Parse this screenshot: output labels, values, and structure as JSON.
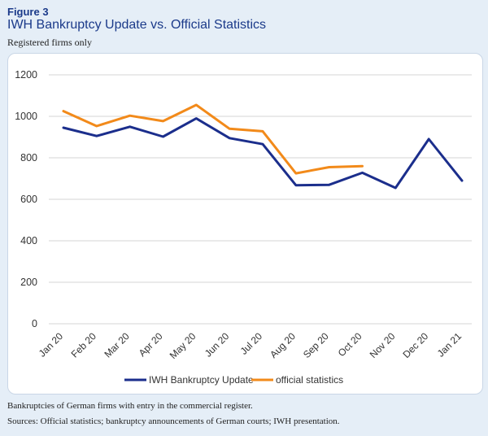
{
  "figure": {
    "label": "Figure 3",
    "title": "IWH Bankruptcy Update vs. Official Statistics",
    "subtitle": "Registered firms only"
  },
  "footnotes": {
    "note": "Bankruptcies of German firms with entry in the commercial register.",
    "sources": "Sources: Official statistics; bankruptcy announcements of German courts; IWH presentation."
  },
  "chart_data": {
    "type": "line",
    "title": "IWH Bankruptcy Update vs. Official Statistics",
    "subtitle": "Registered firms only",
    "xlabel": "",
    "ylabel": "",
    "categories": [
      "Jan 20",
      "Feb 20",
      "Mar 20",
      "Apr 20",
      "May 20",
      "Jun 20",
      "Jul 20",
      "Aug 20",
      "Sep 20",
      "Oct 20",
      "Nov 20",
      "Dec 20",
      "Jan 21"
    ],
    "ylim": [
      0,
      1200
    ],
    "yticks": [
      0,
      200,
      400,
      600,
      800,
      1000,
      1200
    ],
    "grid": "horizontal",
    "legend_position": "bottom",
    "series": [
      {
        "name": "IWH Bankruptcy Update",
        "color": "#1b2e8c",
        "values": [
          945,
          905,
          950,
          902,
          990,
          895,
          866,
          668,
          670,
          728,
          655,
          890,
          690
        ]
      },
      {
        "name": "official statistics",
        "color": "#f28a1a",
        "values": [
          1025,
          953,
          1003,
          977,
          1055,
          940,
          928,
          725,
          755,
          760,
          null,
          null,
          null
        ]
      }
    ]
  }
}
